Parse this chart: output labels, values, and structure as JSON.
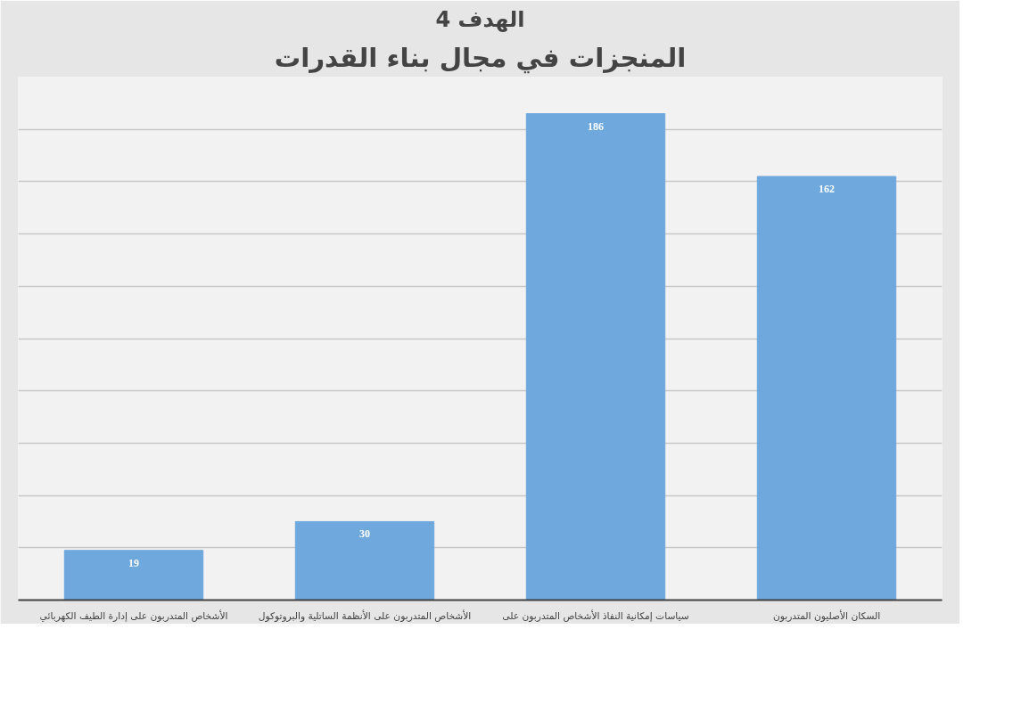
{
  "chart_data": {
    "type": "bar",
    "title": "الهدف 4",
    "subtitle": "المنجزات في مجال بناء القدرات",
    "categories": [
      "الأشخاص المتدربون على إدارة الطيف الكهربائي",
      "الأشخاص المتدربون على الأنظمة الساتلية والبروتوكول",
      "سياسات إمكانية النفاذ الأشخاص المتدربون على",
      "السكان الأصليون المتدربون"
    ],
    "values": [
      19,
      30,
      186,
      162
    ],
    "color": "#6fa8dc",
    "data_labels": true,
    "ylim": [
      0,
      200
    ],
    "yticks": [
      {
        "value": 0,
        "label": null
      },
      {
        "value": 20,
        "label": null
      },
      {
        "value": 40,
        "label": null
      },
      {
        "value": 60,
        "label": null
      },
      {
        "value": 80,
        "label": null
      },
      {
        "value": 100,
        "label": null
      },
      {
        "value": 120,
        "label": null
      },
      {
        "value": 140,
        "label": null
      },
      {
        "value": 160,
        "label": null
      },
      {
        "value": 180,
        "label": null
      },
      {
        "value": 200,
        "label": null
      }
    ],
    "tick_labels": "x",
    "grid": "y"
  }
}
